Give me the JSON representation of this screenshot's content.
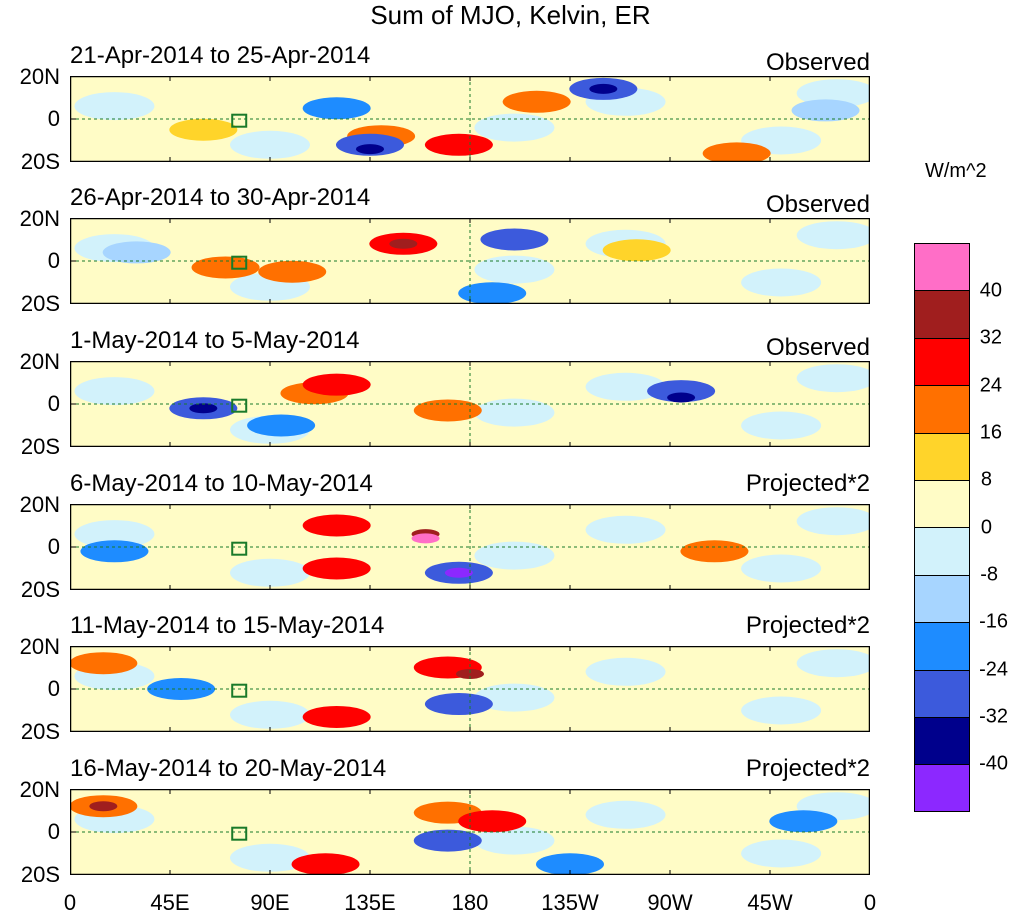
{
  "title": "Sum of MJO, Kelvin, ER",
  "lat_labels": [
    "20N",
    "0",
    "20S"
  ],
  "x_ticks": [
    "0",
    "45E",
    "90E",
    "135E",
    "180",
    "135W",
    "90W",
    "45W",
    "0"
  ],
  "panels": [
    {
      "dates": "21-Apr-2014 to 25-Apr-2014",
      "status": "Observed"
    },
    {
      "dates": "26-Apr-2014 to 30-Apr-2014",
      "status": "Observed"
    },
    {
      "dates": "1-May-2014 to 5-May-2014",
      "status": "Observed"
    },
    {
      "dates": "6-May-2014 to 10-May-2014",
      "status": "Projected*2"
    },
    {
      "dates": "11-May-2014 to 15-May-2014",
      "status": "Projected*2"
    },
    {
      "dates": "16-May-2014 to 20-May-2014",
      "status": "Projected*2"
    }
  ],
  "colorbar": {
    "units": "W/m^2",
    "labels": [
      "40",
      "32",
      "24",
      "16",
      "8",
      "0",
      "-8",
      "-16",
      "-24",
      "-32",
      "-40"
    ],
    "colors": [
      "#ff6ec7",
      "#a01e1e",
      "#ff0000",
      "#ff7000",
      "#ffd42a",
      "#fffcc6",
      "#d2f2fb",
      "#a7d5ff",
      "#1e8cff",
      "#3c5adc",
      "#00008c",
      "#8c28ff"
    ]
  },
  "anomalies": [
    [
      [
        "#ff7000",
        140,
        -8
      ],
      [
        "#ff0000",
        175,
        -12
      ],
      [
        "#ff7000",
        210,
        8
      ],
      [
        "#3c5adc",
        135,
        -12
      ],
      [
        "#00008c",
        135,
        -14
      ],
      [
        "#3c5adc",
        240,
        14
      ],
      [
        "#00008c",
        240,
        14
      ],
      [
        "#ffd42a",
        60,
        -5
      ],
      [
        "#ff7000",
        300,
        -16
      ],
      [
        "#1e8cff",
        120,
        5
      ],
      [
        "#a7d5ff",
        340,
        4
      ]
    ],
    [
      [
        "#ff0000",
        150,
        8
      ],
      [
        "#a01e1e",
        150,
        8
      ],
      [
        "#ff7000",
        100,
        -5
      ],
      [
        "#3c5adc",
        200,
        10
      ],
      [
        "#ff7000",
        70,
        -3
      ],
      [
        "#a7d5ff",
        30,
        4
      ],
      [
        "#1e8cff",
        190,
        -15
      ],
      [
        "#ffd42a",
        255,
        5
      ]
    ],
    [
      [
        "#3c5adc",
        60,
        -2
      ],
      [
        "#00008c",
        60,
        -2
      ],
      [
        "#ff7000",
        110,
        5
      ],
      [
        "#ff0000",
        120,
        9
      ],
      [
        "#3c5adc",
        275,
        6
      ],
      [
        "#00008c",
        275,
        3
      ],
      [
        "#ff7000",
        170,
        -3
      ],
      [
        "#1e8cff",
        95,
        -10
      ]
    ],
    [
      [
        "#ff0000",
        120,
        10
      ],
      [
        "#a01e1e",
        160,
        6
      ],
      [
        "#ff6ec7",
        160,
        4
      ],
      [
        "#3c5adc",
        175,
        -12
      ],
      [
        "#8c28ff",
        175,
        -12
      ],
      [
        "#ff0000",
        120,
        -10
      ],
      [
        "#1e8cff",
        20,
        -2
      ],
      [
        "#ff7000",
        290,
        -2
      ]
    ],
    [
      [
        "#ff0000",
        170,
        10
      ],
      [
        "#a01e1e",
        180,
        7
      ],
      [
        "#ff0000",
        120,
        -13
      ],
      [
        "#ff7000",
        15,
        12
      ],
      [
        "#3c5adc",
        175,
        -7
      ],
      [
        "#1e8cff",
        50,
        0
      ]
    ],
    [
      [
        "#ff7000",
        15,
        12
      ],
      [
        "#a01e1e",
        15,
        12
      ],
      [
        "#ff7000",
        170,
        9
      ],
      [
        "#ff0000",
        190,
        5
      ],
      [
        "#ff0000",
        115,
        -15
      ],
      [
        "#3c5adc",
        170,
        -4
      ],
      [
        "#1e8cff",
        225,
        -15
      ],
      [
        "#1e8cff",
        330,
        5
      ]
    ]
  ]
}
